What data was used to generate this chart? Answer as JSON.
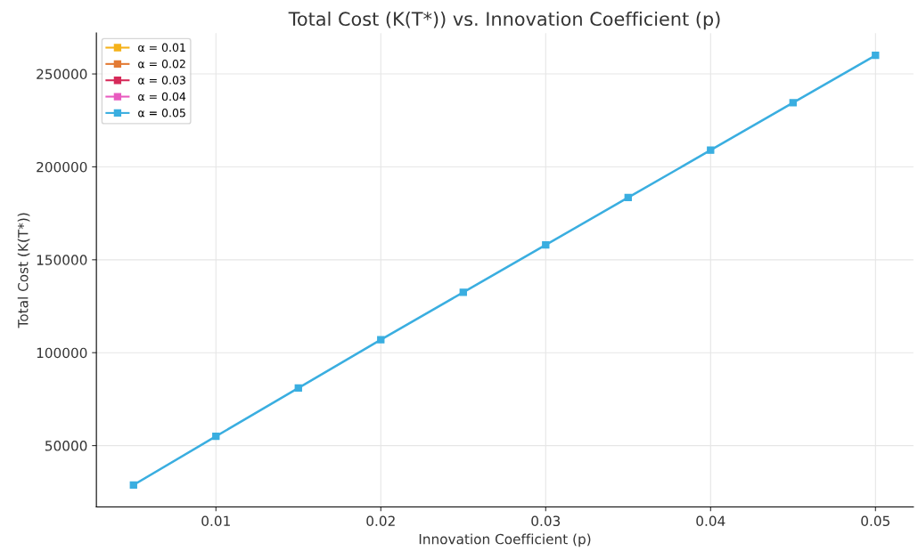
{
  "chart_data": {
    "type": "line",
    "title": "Total Cost (K(T*)) vs. Innovation Coefficient (p)",
    "xlabel": "Innovation Coefficient (p)",
    "ylabel": "Total Cost (K(T*))",
    "x": [
      0.005,
      0.01,
      0.015,
      0.02,
      0.025,
      0.03,
      0.035,
      0.04,
      0.045,
      0.05
    ],
    "series": [
      {
        "name": "α = 0.01",
        "color": "#f5b21a",
        "values": [
          null,
          null,
          null,
          null,
          null,
          null,
          null,
          null,
          null,
          null
        ]
      },
      {
        "name": "α = 0.02",
        "color": "#e37b35",
        "values": [
          null,
          null,
          null,
          null,
          null,
          null,
          null,
          null,
          null,
          null
        ]
      },
      {
        "name": "α = 0.03",
        "color": "#d62b5a",
        "values": [
          null,
          null,
          null,
          null,
          null,
          null,
          null,
          null,
          null,
          null
        ]
      },
      {
        "name": "α = 0.04",
        "color": "#e85bbf",
        "values": [
          null,
          null,
          null,
          null,
          null,
          null,
          null,
          null,
          null,
          null
        ]
      },
      {
        "name": "α = 0.05",
        "color": "#3aaee0",
        "values": [
          28800,
          55000,
          81000,
          107000,
          132500,
          158000,
          183500,
          209000,
          234500,
          260000
        ]
      }
    ],
    "xlim": [
      0.00275,
      0.0523
    ],
    "ylim": [
      17000,
      272000
    ],
    "xticks": [
      0.01,
      0.02,
      0.03,
      0.04,
      0.05
    ],
    "yticks": [
      50000,
      100000,
      150000,
      200000,
      250000
    ],
    "grid": true,
    "legend": "top left",
    "marker": "square",
    "line_style": "solid"
  }
}
